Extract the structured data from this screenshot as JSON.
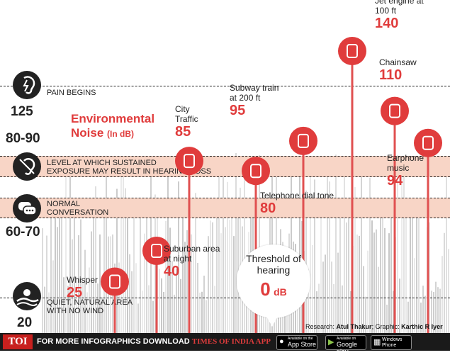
{
  "title": {
    "line1": "Environmental",
    "line2": "Noise",
    "unit": "(In dB)"
  },
  "levels": [
    {
      "id": "pain",
      "value": "125",
      "label_lines": [
        "PAIN BEGINS"
      ]
    },
    {
      "id": "exposure",
      "value": "80-90",
      "label_lines": [
        "LEVEL AT WHICH SUSTAINED",
        "EXPOSURE MAY RESULT IN HEARING LOSS"
      ]
    },
    {
      "id": "normal",
      "value": "60-70",
      "label_lines": [
        "NORMAL",
        "CONVERSATION"
      ]
    },
    {
      "id": "quiet",
      "value": "20",
      "label_lines": [
        "QUIET, NATURAL AREA",
        "WITH NO WIND"
      ]
    }
  ],
  "chart_data": {
    "type": "bar",
    "title": "Environmental Noise (In dB)",
    "categories": [
      "Whisper",
      "Suburban area at night",
      "City Traffic",
      "Telephone dial tone",
      "Subway train at 200 ft",
      "Threshold of hearing",
      "Jet engine at 100 ft",
      "Chainsaw",
      "Earphone music"
    ],
    "values": [
      25,
      40,
      85,
      80,
      95,
      0,
      140,
      110,
      94
    ],
    "unit": "dB"
  },
  "sources": [
    {
      "name_lines": [
        "Whisper"
      ],
      "value": "25",
      "icon": "hand-icon"
    },
    {
      "name_lines": [
        "Suburban area",
        "at night"
      ],
      "value": "40",
      "icon": "buildings-icon"
    },
    {
      "name_lines": [
        "City",
        "Traffic"
      ],
      "value": "85",
      "icon": "traffic-light-icon"
    },
    {
      "name_lines": [
        "Telephone dial tone"
      ],
      "value": "80",
      "icon": "phone-icon"
    },
    {
      "name_lines": [
        "Subway train",
        "at 200 ft"
      ],
      "value": "95",
      "icon": "train-icon"
    },
    {
      "name_lines": [
        "Threshold of",
        "hearing"
      ],
      "value": "0",
      "unit": "dB",
      "icon": ""
    },
    {
      "name_lines": [
        "Jet engine at",
        "100 ft"
      ],
      "value": "140",
      "icon": "airplane-icon"
    },
    {
      "name_lines": [
        "Chainsaw"
      ],
      "value": "110",
      "icon": "chainsaw-icon"
    },
    {
      "name_lines": [
        "Earphone",
        "music"
      ],
      "value": "94",
      "icon": "earphones-icon"
    }
  ],
  "credits": {
    "research_label": "Research:",
    "research_name": "Atul Thakur",
    "graphic_label": "Graphic:",
    "graphic_name": "Karthic R Iyer"
  },
  "footer": {
    "logo": "TOI",
    "text": "FOR MORE  INFOGRAPHICS DOWNLOAD",
    "app": "TIMES OF INDIA  APP",
    "appstore_small": "Available on the",
    "appstore": "App Store",
    "googleplay_small": "Available on",
    "googleplay": "Google play",
    "windows_line1": "Windows",
    "windows_line2": "Phone"
  },
  "colors": {
    "accent": "#e03c3c",
    "band": "#f8d5c6",
    "dark": "#222222",
    "stem": "#e05050"
  }
}
